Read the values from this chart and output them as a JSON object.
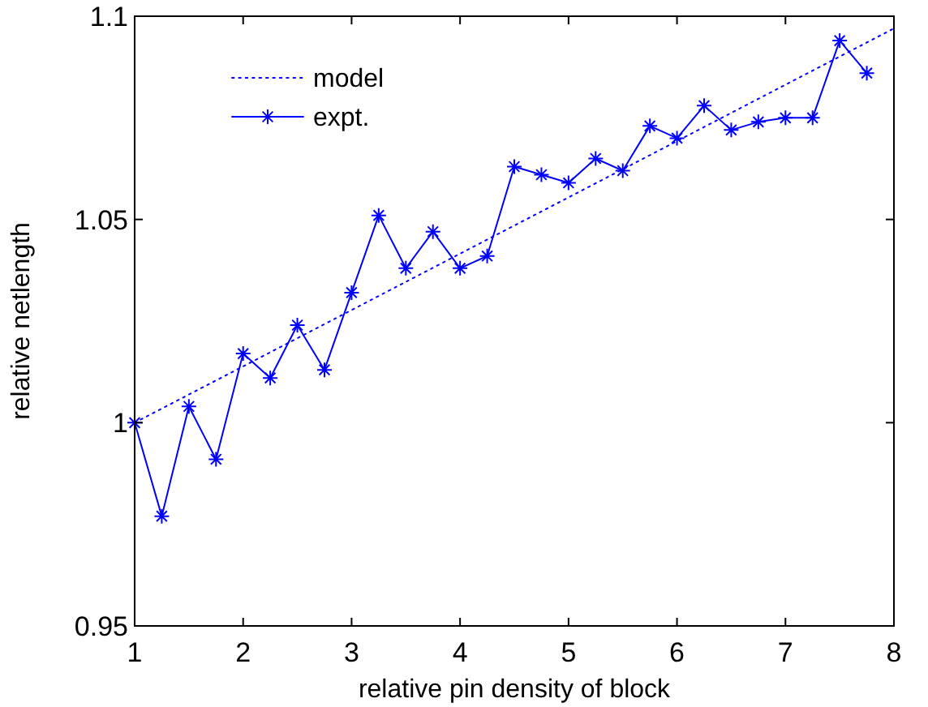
{
  "chart_data": {
    "type": "line",
    "xlabel": "relative pin density of block",
    "ylabel": "relative netlength",
    "xlim": [
      1,
      8
    ],
    "xticks": [
      1,
      2,
      3,
      4,
      5,
      6,
      7,
      8
    ],
    "ylim": [
      0.95,
      1.1
    ],
    "yticks": [
      0.95,
      1,
      1.05,
      1.1
    ],
    "legend": "top left",
    "grid": false,
    "series": [
      {
        "name": "model",
        "color": "#0000ff",
        "line_style": "dotted",
        "x": [
          1,
          8
        ],
        "values": [
          1,
          1.097
        ]
      },
      {
        "name": "expt.",
        "color": "#0000ff",
        "line_style": "solid",
        "marker": "cross",
        "x": [
          1,
          1.25,
          1.5,
          1.75,
          2,
          2.25,
          2.5,
          2.75,
          3,
          3.25,
          3.5,
          3.75,
          4,
          4.25,
          4.5,
          4.75,
          5,
          5.25,
          5.5,
          5.75,
          6,
          6.25,
          6.5,
          6.75,
          7,
          7.25,
          7.5,
          7.75
        ],
        "values": [
          1.0,
          0.977,
          1.004,
          0.991,
          1.017,
          1.011,
          1.024,
          1.013,
          1.032,
          1.051,
          1.038,
          1.047,
          1.038,
          1.041,
          1.063,
          1.061,
          1.059,
          1.065,
          1.062,
          1.073,
          1.07,
          1.078,
          1.072,
          1.074,
          1.075,
          1.075,
          1.094,
          1.086
        ]
      }
    ]
  }
}
